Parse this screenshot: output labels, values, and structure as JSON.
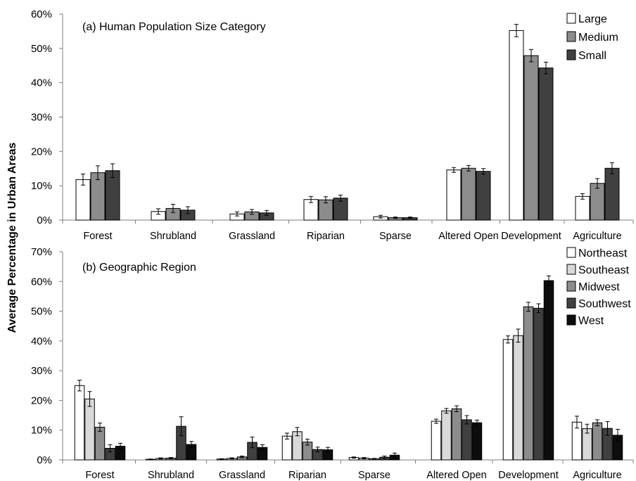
{
  "ylabel": "Average Percentage in Urban Areas",
  "chart_data": [
    {
      "type": "bar",
      "title": "(a) Human Population Size Category",
      "ylabel": "Average Percentage in Urban Areas",
      "ylim": [
        0,
        60
      ],
      "yticks": [
        "0%",
        "10%",
        "20%",
        "30%",
        "40%",
        "50%",
        "60%"
      ],
      "legend_position": "top-right",
      "categories": [
        "Forest",
        "Shrubland",
        "Grassland",
        "Riparian",
        "Sparse",
        "Altered Open",
        "Development",
        "Agriculture"
      ],
      "series": [
        {
          "name": "Large",
          "color": "#ffffff",
          "values": [
            11.8,
            2.5,
            1.8,
            6.0,
            1.0,
            14.6,
            55.2,
            6.9
          ],
          "errors": [
            1.6,
            0.8,
            0.6,
            0.9,
            0.4,
            0.7,
            1.8,
            0.8
          ]
        },
        {
          "name": "Medium",
          "color": "#8c8c8c",
          "values": [
            13.8,
            3.4,
            2.4,
            5.9,
            0.7,
            15.1,
            47.9,
            10.7
          ],
          "errors": [
            2.0,
            1.2,
            0.7,
            0.9,
            0.2,
            0.8,
            1.8,
            1.4
          ]
        },
        {
          "name": "Small",
          "color": "#404040",
          "values": [
            14.4,
            2.9,
            2.1,
            6.4,
            0.7,
            14.2,
            44.3,
            15.1
          ],
          "errors": [
            2.0,
            1.0,
            0.7,
            0.9,
            0.2,
            0.8,
            1.7,
            1.6
          ]
        }
      ]
    },
    {
      "type": "bar",
      "title": "(b) Geographic Region",
      "ylabel": "Average Percentage in Urban Areas",
      "ylim": [
        0,
        70
      ],
      "yticks": [
        "0%",
        "10%",
        "20%",
        "30%",
        "40%",
        "50%",
        "60%",
        "70%"
      ],
      "legend_position": "top-right",
      "categories": [
        "Forest",
        "Shrubland",
        "Grassland",
        "Riparian",
        "Sparse",
        "Altered Open",
        "Development",
        "Agriculture"
      ],
      "series": [
        {
          "name": "Northeast",
          "color": "#ffffff",
          "values": [
            25.0,
            0.2,
            0.3,
            8.0,
            0.8,
            13.0,
            40.5,
            12.7
          ],
          "errors": [
            1.8,
            0.1,
            0.1,
            1.0,
            0.2,
            0.7,
            1.2,
            2.0
          ]
        },
        {
          "name": "Southeast",
          "color": "#d9d9d9",
          "values": [
            20.5,
            0.5,
            0.5,
            9.5,
            0.6,
            16.5,
            41.8,
            10.5
          ],
          "errors": [
            2.5,
            0.2,
            0.2,
            1.4,
            0.2,
            0.8,
            2.2,
            1.5
          ]
        },
        {
          "name": "Midwest",
          "color": "#8c8c8c",
          "values": [
            11.0,
            0.6,
            1.0,
            6.0,
            0.4,
            17.2,
            51.5,
            12.5
          ],
          "errors": [
            1.4,
            0.2,
            0.3,
            1.0,
            0.1,
            1.0,
            1.5,
            1.0
          ]
        },
        {
          "name": "Southwest",
          "color": "#404040",
          "values": [
            3.9,
            11.3,
            5.9,
            3.5,
            0.9,
            13.5,
            51.0,
            10.6
          ],
          "errors": [
            1.2,
            3.2,
            1.8,
            0.8,
            0.4,
            1.4,
            1.5,
            2.3
          ]
        },
        {
          "name": "West",
          "color": "#0d0d0d",
          "values": [
            4.6,
            5.2,
            4.2,
            3.4,
            1.6,
            12.5,
            60.3,
            8.3
          ],
          "errors": [
            1.0,
            1.0,
            0.9,
            0.8,
            0.7,
            0.9,
            1.6,
            2.0
          ]
        }
      ]
    }
  ]
}
